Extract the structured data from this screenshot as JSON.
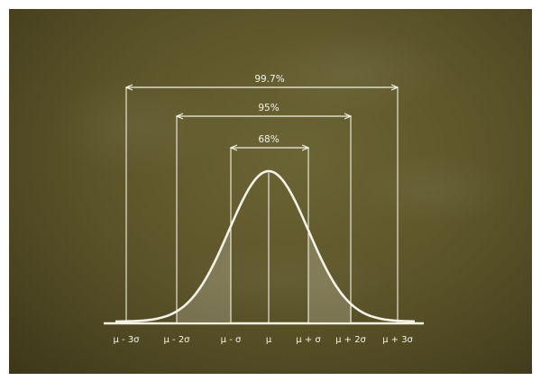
{
  "intervals": [
    {
      "id": "3sd",
      "label": "99.7%"
    },
    {
      "id": "2sd",
      "label": "95%"
    },
    {
      "id": "1sd",
      "label": "68%"
    }
  ],
  "axis_labels": [
    "μ - 3σ",
    "μ - 2σ",
    "μ - σ",
    "μ",
    "μ + σ",
    "μ + 2σ",
    "μ + 3σ"
  ],
  "colors": {
    "board": "#5e562a",
    "chalk": "#f4f2e6",
    "shade": "rgba(244,242,230,0.22)"
  }
}
